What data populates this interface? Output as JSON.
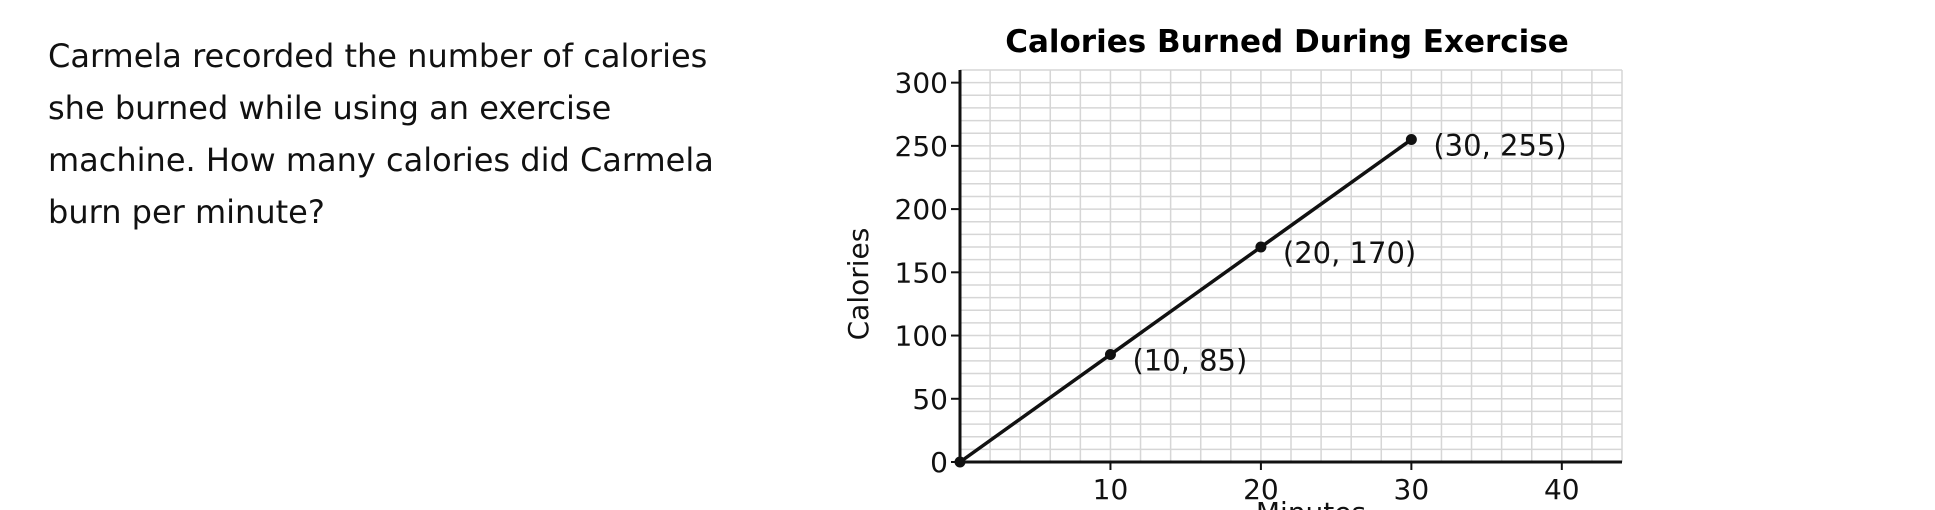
{
  "question": {
    "lines": [
      "Carmela recorded the number of calories",
      "she burned while using an exercise",
      "machine. How many calories did Carmela",
      "burn per minute?"
    ]
  },
  "chart_data": {
    "type": "line",
    "title": "Calories Burned During Exercise",
    "xlabel": "Minutes",
    "ylabel": "Calories",
    "xlim": [
      0,
      44
    ],
    "ylim": [
      0,
      310
    ],
    "x_ticks": [
      10,
      20,
      30,
      40
    ],
    "y_ticks": [
      0,
      50,
      100,
      150,
      200,
      250,
      300
    ],
    "x_grid_step": 2,
    "y_grid_step": 10,
    "grid": true,
    "series": [
      {
        "x": [
          0,
          10,
          20,
          30
        ],
        "y": [
          0,
          85,
          170,
          255
        ]
      }
    ],
    "annotations": [
      {
        "x": 10,
        "y": 85,
        "text": "(10, 85)"
      },
      {
        "x": 20,
        "y": 170,
        "text": "(20, 170)"
      },
      {
        "x": 30,
        "y": 255,
        "text": "(30, 255)"
      }
    ],
    "colors": {
      "line": "#111111",
      "grid": "#d6d6d6",
      "axis": "#111111"
    }
  }
}
